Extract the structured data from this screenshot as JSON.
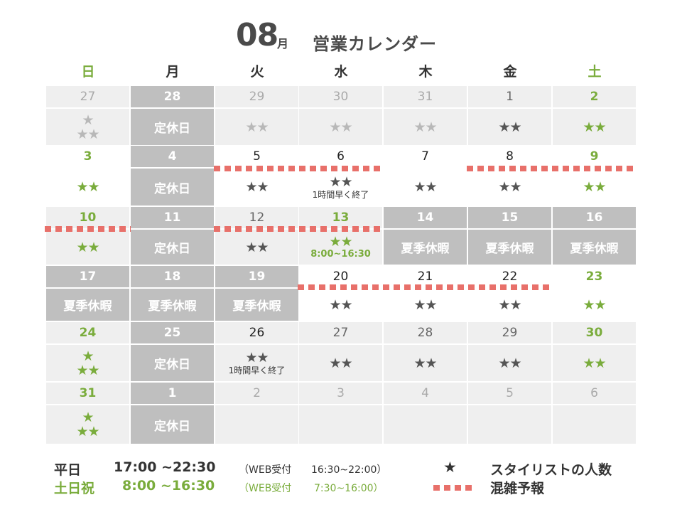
{
  "title": {
    "month": "08",
    "month_suffix": "月",
    "text": "営業カレンダー"
  },
  "weekdays": [
    "日",
    "月",
    "火",
    "水",
    "木",
    "金",
    "土"
  ],
  "weeks": [
    [
      {
        "date": "27",
        "date_style": "grey",
        "bg": "grey",
        "stars": [
          "★",
          "★★"
        ],
        "star_style": "grey"
      },
      {
        "date": "28",
        "date_style": "closed",
        "bg": "closed",
        "text": "定休日"
      },
      {
        "date": "29",
        "date_style": "grey",
        "bg": "grey",
        "stars": [
          "★★"
        ],
        "star_style": "grey"
      },
      {
        "date": "30",
        "date_style": "grey",
        "bg": "grey",
        "stars": [
          "★★"
        ],
        "star_style": "grey"
      },
      {
        "date": "31",
        "date_style": "grey",
        "bg": "grey",
        "stars": [
          "★★"
        ],
        "star_style": "grey"
      },
      {
        "date": "1",
        "date_style": "mid",
        "bg": "grey",
        "stars": [
          "★★"
        ],
        "star_style": "dark"
      },
      {
        "date": "2",
        "date_style": "green",
        "bg": "grey",
        "stars": [
          "★★"
        ],
        "star_style": "green"
      }
    ],
    [
      {
        "date": "3",
        "date_style": "green",
        "bg": "white",
        "stars": [
          "★★"
        ],
        "star_style": "green"
      },
      {
        "date": "4",
        "date_style": "closed",
        "bg": "closed",
        "text": "定休日"
      },
      {
        "date": "5",
        "date_style": "dark",
        "bg": "white",
        "stars": [
          "★★"
        ],
        "star_style": "dark"
      },
      {
        "date": "6",
        "date_style": "dark",
        "bg": "white",
        "stars": [
          "★★"
        ],
        "star_style": "dark",
        "note": "1時間早く終了"
      },
      {
        "date": "7",
        "date_style": "dark",
        "bg": "white",
        "stars": [
          "★★"
        ],
        "star_style": "dark"
      },
      {
        "date": "8",
        "date_style": "dark",
        "bg": "white",
        "stars": [
          "★★"
        ],
        "star_style": "dark"
      },
      {
        "date": "9",
        "date_style": "green",
        "bg": "white",
        "stars": [
          "★★"
        ],
        "star_style": "green"
      }
    ],
    [
      {
        "date": "10",
        "date_style": "green",
        "bg": "grey",
        "stars": [
          "★★"
        ],
        "star_style": "green"
      },
      {
        "date": "11",
        "date_style": "closed",
        "bg": "closed",
        "text": "定休日"
      },
      {
        "date": "12",
        "date_style": "mid",
        "bg": "grey",
        "stars": [
          "★★"
        ],
        "star_style": "dark"
      },
      {
        "date": "13",
        "date_style": "green",
        "bg": "grey",
        "stars": [
          "★★"
        ],
        "star_style": "green",
        "note": "8:00~16:30",
        "note_style": "green"
      },
      {
        "date": "14",
        "date_style": "closed",
        "bg": "closed",
        "text": "夏季休暇"
      },
      {
        "date": "15",
        "date_style": "closed",
        "bg": "closed",
        "text": "夏季休暇"
      },
      {
        "date": "16",
        "date_style": "closed",
        "bg": "closed",
        "text": "夏季休暇"
      }
    ],
    [
      {
        "date": "17",
        "date_style": "closed",
        "bg": "closed",
        "text": "夏季休暇"
      },
      {
        "date": "18",
        "date_style": "closed",
        "bg": "closed",
        "text": "夏季休暇"
      },
      {
        "date": "19",
        "date_style": "closed",
        "bg": "closed",
        "text": "夏季休暇"
      },
      {
        "date": "20",
        "date_style": "dark",
        "bg": "white",
        "stars": [
          "★★"
        ],
        "star_style": "dark"
      },
      {
        "date": "21",
        "date_style": "dark",
        "bg": "white",
        "stars": [
          "★★"
        ],
        "star_style": "dark"
      },
      {
        "date": "22",
        "date_style": "dark",
        "bg": "white",
        "stars": [
          "★★"
        ],
        "star_style": "dark"
      },
      {
        "date": "23",
        "date_style": "green",
        "bg": "white",
        "stars": [
          "★★"
        ],
        "star_style": "green"
      }
    ],
    [
      {
        "date": "24",
        "date_style": "green",
        "bg": "grey",
        "stars": [
          "★",
          "★★"
        ],
        "star_style": "green"
      },
      {
        "date": "25",
        "date_style": "closed",
        "bg": "closed",
        "text": "定休日"
      },
      {
        "date": "26",
        "date_style": "dark",
        "bg": "grey",
        "stars": [
          "★★"
        ],
        "star_style": "dark",
        "note": "1時間早く終了"
      },
      {
        "date": "27",
        "date_style": "mid",
        "bg": "grey",
        "stars": [
          "★★"
        ],
        "star_style": "dark"
      },
      {
        "date": "28",
        "date_style": "mid",
        "bg": "grey",
        "stars": [
          "★★"
        ],
        "star_style": "dark"
      },
      {
        "date": "29",
        "date_style": "mid",
        "bg": "grey",
        "stars": [
          "★★"
        ],
        "star_style": "dark"
      },
      {
        "date": "30",
        "date_style": "green",
        "bg": "grey",
        "stars": [
          "★★"
        ],
        "star_style": "green"
      }
    ],
    [
      {
        "date": "31",
        "date_style": "green",
        "bg": "grey",
        "stars": [
          "★",
          "★★"
        ],
        "star_style": "green"
      },
      {
        "date": "1",
        "date_style": "closed",
        "bg": "closed",
        "text": "定休日"
      },
      {
        "date": "2",
        "date_style": "grey",
        "bg": "grey"
      },
      {
        "date": "3",
        "date_style": "grey",
        "bg": "grey"
      },
      {
        "date": "4",
        "date_style": "grey",
        "bg": "grey"
      },
      {
        "date": "5",
        "date_style": "grey",
        "bg": "grey"
      },
      {
        "date": "6",
        "date_style": "grey",
        "bg": "grey"
      }
    ]
  ],
  "busy_periods": [
    {
      "week": 1,
      "from_col": 2,
      "to_col": 3
    },
    {
      "week": 1,
      "from_col": 5,
      "to_col": 6
    },
    {
      "week": 2,
      "from_col": 0,
      "to_col": 0
    },
    {
      "week": 2,
      "from_col": 2,
      "to_col": 3
    },
    {
      "week": 3,
      "from_col": 3,
      "to_col": 5
    }
  ],
  "footer": {
    "weekday_label": "平日",
    "weekday_hours": "17:00 ~22:30",
    "weekday_web": "（WEB受付",
    "weekday_web_hours": "16:30~22:00）",
    "holiday_label": "土日祝",
    "holiday_hours": "8:00 ~16:30",
    "holiday_web": "（WEB受付",
    "holiday_web_hours": "7:30~16:00）",
    "legend_star_symbol": "★",
    "legend_star_label": "スタイリストの人数",
    "legend_busy_label": "混雑予報"
  },
  "colors": {
    "green": "#7aac3c",
    "busy": "#e8706a",
    "closed": "#bfbfbf",
    "cell_grey": "#efefef"
  }
}
